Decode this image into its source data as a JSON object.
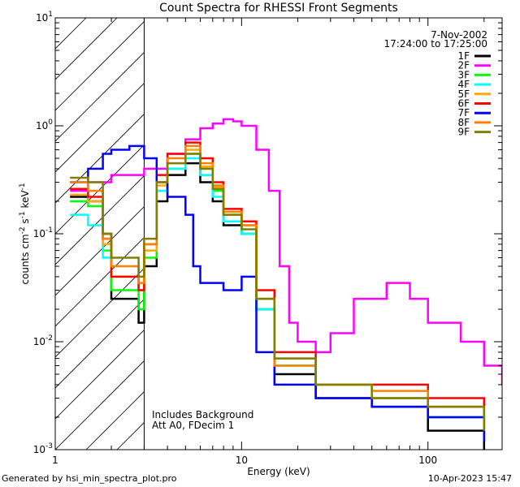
{
  "footer": {
    "generated_by": "Generated by hsi_min_spectra_plot.pro",
    "timestamp": "10-Apr-2023 15:47"
  },
  "chart_data": {
    "type": "line",
    "title": "Count Spectra for RHESSI Front Segments",
    "xlabel": "Energy (keV)",
    "ylabel": "counts cm-2 s-1 keV-1",
    "xscale": "log",
    "yscale": "log",
    "xlim": [
      1,
      250
    ],
    "ylim": [
      0.001,
      10
    ],
    "x_ticks": [
      {
        "value": 1,
        "label": "1"
      },
      {
        "value": 10,
        "label": "10"
      },
      {
        "value": 100,
        "label": "100"
      }
    ],
    "y_ticks": [
      {
        "value": 0.001,
        "base": "10",
        "exp": "-3"
      },
      {
        "value": 0.01,
        "base": "10",
        "exp": "-2"
      },
      {
        "value": 0.1,
        "base": "10",
        "exp": "-1"
      },
      {
        "value": 1,
        "base": "10",
        "exp": "0"
      },
      {
        "value": 10,
        "base": "10",
        "exp": "1"
      }
    ],
    "date": "7-Nov-2002",
    "time_range": "17:24:00 to 17:25:00",
    "hatched_region": [
      1,
      3
    ],
    "annotations": [
      "Includes Background",
      "Att A0, FDecim 1"
    ],
    "series": [
      {
        "name": "1F",
        "color": "#000000",
        "points": [
          [
            1.2,
            0.22
          ],
          [
            1.5,
            0.2
          ],
          [
            1.8,
            0.1
          ],
          [
            2.0,
            0.025
          ],
          [
            2.4,
            0.025
          ],
          [
            2.8,
            0.015
          ],
          [
            3.0,
            0.05
          ],
          [
            3.5,
            0.2
          ],
          [
            4.0,
            0.35
          ],
          [
            5.0,
            0.45
          ],
          [
            6.0,
            0.3
          ],
          [
            7.0,
            0.2
          ],
          [
            8.0,
            0.12
          ],
          [
            10,
            0.1
          ],
          [
            12,
            0.02
          ],
          [
            15,
            0.005
          ],
          [
            25,
            0.003
          ],
          [
            50,
            0.0025
          ],
          [
            100,
            0.0015
          ],
          [
            200,
            0.001
          ]
        ]
      },
      {
        "name": "2F",
        "color": "#ff00ff",
        "points": [
          [
            1.2,
            0.25
          ],
          [
            1.5,
            0.3
          ],
          [
            2.0,
            0.35
          ],
          [
            3.0,
            0.4
          ],
          [
            4.0,
            0.55
          ],
          [
            5.0,
            0.75
          ],
          [
            6.0,
            0.95
          ],
          [
            7.0,
            1.05
          ],
          [
            8.0,
            1.15
          ],
          [
            9.0,
            1.1
          ],
          [
            10,
            1.0
          ],
          [
            12,
            0.6
          ],
          [
            14,
            0.25
          ],
          [
            16,
            0.05
          ],
          [
            18,
            0.015
          ],
          [
            20,
            0.01
          ],
          [
            25,
            0.008
          ],
          [
            30,
            0.012
          ],
          [
            40,
            0.025
          ],
          [
            60,
            0.035
          ],
          [
            80,
            0.025
          ],
          [
            100,
            0.015
          ],
          [
            150,
            0.01
          ],
          [
            200,
            0.006
          ],
          [
            250,
            0.004
          ]
        ]
      },
      {
        "name": "3F",
        "color": "#00ff00",
        "points": [
          [
            1.2,
            0.2
          ],
          [
            1.5,
            0.18
          ],
          [
            1.8,
            0.07
          ],
          [
            2.0,
            0.03
          ],
          [
            2.5,
            0.03
          ],
          [
            2.8,
            0.02
          ],
          [
            3.0,
            0.06
          ],
          [
            3.5,
            0.25
          ],
          [
            4.0,
            0.4
          ],
          [
            5.0,
            0.55
          ],
          [
            6.0,
            0.4
          ],
          [
            7.0,
            0.25
          ],
          [
            8.0,
            0.15
          ],
          [
            10,
            0.1
          ],
          [
            12,
            0.02
          ],
          [
            15,
            0.006
          ],
          [
            25,
            0.004
          ],
          [
            50,
            0.003
          ],
          [
            100,
            0.002
          ],
          [
            200,
            0.0012
          ]
        ]
      },
      {
        "name": "4F",
        "color": "#00ffff",
        "points": [
          [
            1.2,
            0.15
          ],
          [
            1.5,
            0.12
          ],
          [
            1.8,
            0.06
          ],
          [
            2.0,
            0.04
          ],
          [
            2.5,
            0.04
          ],
          [
            2.8,
            0.03
          ],
          [
            3.0,
            0.07
          ],
          [
            3.5,
            0.25
          ],
          [
            4.0,
            0.4
          ],
          [
            5.0,
            0.5
          ],
          [
            6.0,
            0.35
          ],
          [
            7.0,
            0.22
          ],
          [
            8.0,
            0.13
          ],
          [
            10,
            0.1
          ],
          [
            12,
            0.02
          ],
          [
            15,
            0.006
          ],
          [
            25,
            0.004
          ],
          [
            50,
            0.003
          ],
          [
            100,
            0.002
          ],
          [
            200,
            0.0015
          ]
        ]
      },
      {
        "name": "5F",
        "color": "#ffaa00",
        "points": [
          [
            1.2,
            0.23
          ],
          [
            1.5,
            0.2
          ],
          [
            1.8,
            0.08
          ],
          [
            2.0,
            0.04
          ],
          [
            2.5,
            0.04
          ],
          [
            2.8,
            0.03
          ],
          [
            3.0,
            0.07
          ],
          [
            3.5,
            0.28
          ],
          [
            4.0,
            0.45
          ],
          [
            5.0,
            0.6
          ],
          [
            6.0,
            0.42
          ],
          [
            7.0,
            0.27
          ],
          [
            8.0,
            0.15
          ],
          [
            10,
            0.12
          ],
          [
            12,
            0.025
          ],
          [
            15,
            0.007
          ],
          [
            25,
            0.004
          ],
          [
            50,
            0.003
          ],
          [
            100,
            0.0025
          ],
          [
            200,
            0.0015
          ]
        ]
      },
      {
        "name": "6F",
        "color": "#ff0000",
        "points": [
          [
            1.2,
            0.26
          ],
          [
            1.5,
            0.22
          ],
          [
            1.8,
            0.09
          ],
          [
            2.0,
            0.04
          ],
          [
            2.5,
            0.04
          ],
          [
            2.8,
            0.03
          ],
          [
            3.0,
            0.08
          ],
          [
            3.5,
            0.35
          ],
          [
            4.0,
            0.55
          ],
          [
            5.0,
            0.7
          ],
          [
            6.0,
            0.5
          ],
          [
            7.0,
            0.3
          ],
          [
            8.0,
            0.17
          ],
          [
            10,
            0.13
          ],
          [
            12,
            0.03
          ],
          [
            15,
            0.008
          ],
          [
            25,
            0.004
          ],
          [
            50,
            0.004
          ],
          [
            100,
            0.003
          ],
          [
            200,
            0.0015
          ]
        ]
      },
      {
        "name": "7F",
        "color": "#0000ff",
        "points": [
          [
            1.2,
            0.3
          ],
          [
            1.5,
            0.4
          ],
          [
            1.8,
            0.55
          ],
          [
            2.0,
            0.6
          ],
          [
            2.5,
            0.65
          ],
          [
            3.0,
            0.5
          ],
          [
            3.5,
            0.3
          ],
          [
            4.0,
            0.22
          ],
          [
            5.0,
            0.15
          ],
          [
            5.5,
            0.05
          ],
          [
            6.0,
            0.035
          ],
          [
            8.0,
            0.03
          ],
          [
            10,
            0.04
          ],
          [
            12,
            0.008
          ],
          [
            15,
            0.004
          ],
          [
            25,
            0.003
          ],
          [
            50,
            0.0025
          ],
          [
            100,
            0.002
          ],
          [
            200,
            0.0012
          ]
        ]
      },
      {
        "name": "8F",
        "color": "#ff8000",
        "points": [
          [
            1.2,
            0.3
          ],
          [
            1.5,
            0.25
          ],
          [
            1.8,
            0.09
          ],
          [
            2.0,
            0.05
          ],
          [
            2.5,
            0.05
          ],
          [
            2.8,
            0.035
          ],
          [
            3.0,
            0.08
          ],
          [
            3.5,
            0.3
          ],
          [
            4.0,
            0.5
          ],
          [
            5.0,
            0.65
          ],
          [
            6.0,
            0.45
          ],
          [
            7.0,
            0.28
          ],
          [
            8.0,
            0.16
          ],
          [
            10,
            0.12
          ],
          [
            12,
            0.025
          ],
          [
            15,
            0.006
          ],
          [
            25,
            0.004
          ],
          [
            50,
            0.0035
          ],
          [
            100,
            0.0025
          ],
          [
            200,
            0.0015
          ]
        ]
      },
      {
        "name": "9F",
        "color": "#808000",
        "points": [
          [
            1.2,
            0.33
          ],
          [
            1.5,
            0.3
          ],
          [
            1.8,
            0.1
          ],
          [
            2.0,
            0.06
          ],
          [
            2.5,
            0.06
          ],
          [
            2.8,
            0.04
          ],
          [
            3.0,
            0.09
          ],
          [
            3.5,
            0.3
          ],
          [
            4.0,
            0.45
          ],
          [
            5.0,
            0.55
          ],
          [
            6.0,
            0.4
          ],
          [
            7.0,
            0.26
          ],
          [
            8.0,
            0.15
          ],
          [
            10,
            0.11
          ],
          [
            12,
            0.025
          ],
          [
            15,
            0.007
          ],
          [
            25,
            0.004
          ],
          [
            50,
            0.003
          ],
          [
            100,
            0.0025
          ],
          [
            200,
            0.0015
          ]
        ]
      }
    ]
  }
}
